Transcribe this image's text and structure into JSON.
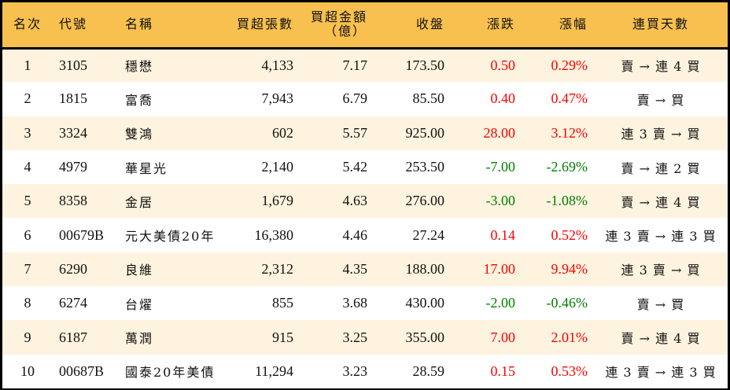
{
  "colors": {
    "header_bg": "#F8C04E",
    "row_odd_bg": "#FDF3DF",
    "row_even_bg": "#FFFFFF",
    "up": "#FF0000",
    "down": "#008000",
    "border": "#000000"
  },
  "headers": {
    "rank": "名次",
    "code": "代號",
    "name": "名稱",
    "net_buy_lots": "買超張數",
    "net_buy_amount_line1": "買超金額",
    "net_buy_amount_line2": "（億）",
    "close": "收盤",
    "change": "漲跌",
    "change_pct": "漲幅",
    "streak": "連買天數"
  },
  "rows": [
    {
      "rank": "1",
      "code": "3105",
      "name": "穩懋",
      "lots": "4,133",
      "amount": "7.17",
      "close": "173.50",
      "change": "0.50",
      "pct": "0.29%",
      "dir": "up",
      "streak": "賣 → 連 4 買"
    },
    {
      "rank": "2",
      "code": "1815",
      "name": "富喬",
      "lots": "7,943",
      "amount": "6.79",
      "close": "85.50",
      "change": "0.40",
      "pct": "0.47%",
      "dir": "up",
      "streak": "賣 → 買"
    },
    {
      "rank": "3",
      "code": "3324",
      "name": "雙鴻",
      "lots": "602",
      "amount": "5.57",
      "close": "925.00",
      "change": "28.00",
      "pct": "3.12%",
      "dir": "up",
      "streak": "連 3 賣 → 買"
    },
    {
      "rank": "4",
      "code": "4979",
      "name": "華星光",
      "lots": "2,140",
      "amount": "5.42",
      "close": "253.50",
      "change": "-7.00",
      "pct": "-2.69%",
      "dir": "down",
      "streak": "賣 → 連 2 買"
    },
    {
      "rank": "5",
      "code": "8358",
      "name": "金居",
      "lots": "1,679",
      "amount": "4.63",
      "close": "276.00",
      "change": "-3.00",
      "pct": "-1.08%",
      "dir": "down",
      "streak": "賣 → 連 4 買"
    },
    {
      "rank": "6",
      "code": "00679B",
      "name": "元大美債20年",
      "lots": "16,380",
      "amount": "4.46",
      "close": "27.24",
      "change": "0.14",
      "pct": "0.52%",
      "dir": "up",
      "streak": "連 3 賣 → 連 3 買"
    },
    {
      "rank": "7",
      "code": "6290",
      "name": "良維",
      "lots": "2,312",
      "amount": "4.35",
      "close": "188.00",
      "change": "17.00",
      "pct": "9.94%",
      "dir": "up",
      "streak": "連 3 賣 → 買"
    },
    {
      "rank": "8",
      "code": "6274",
      "name": "台燿",
      "lots": "855",
      "amount": "3.68",
      "close": "430.00",
      "change": "-2.00",
      "pct": "-0.46%",
      "dir": "down",
      "streak": "賣 → 買"
    },
    {
      "rank": "9",
      "code": "6187",
      "name": "萬潤",
      "lots": "915",
      "amount": "3.25",
      "close": "355.00",
      "change": "7.00",
      "pct": "2.01%",
      "dir": "up",
      "streak": "賣 → 連 4 買"
    },
    {
      "rank": "10",
      "code": "00687B",
      "name": "國泰20年美債",
      "lots": "11,294",
      "amount": "3.23",
      "close": "28.59",
      "change": "0.15",
      "pct": "0.53%",
      "dir": "up",
      "streak": "連 3 賣 → 連 3 買"
    }
  ]
}
